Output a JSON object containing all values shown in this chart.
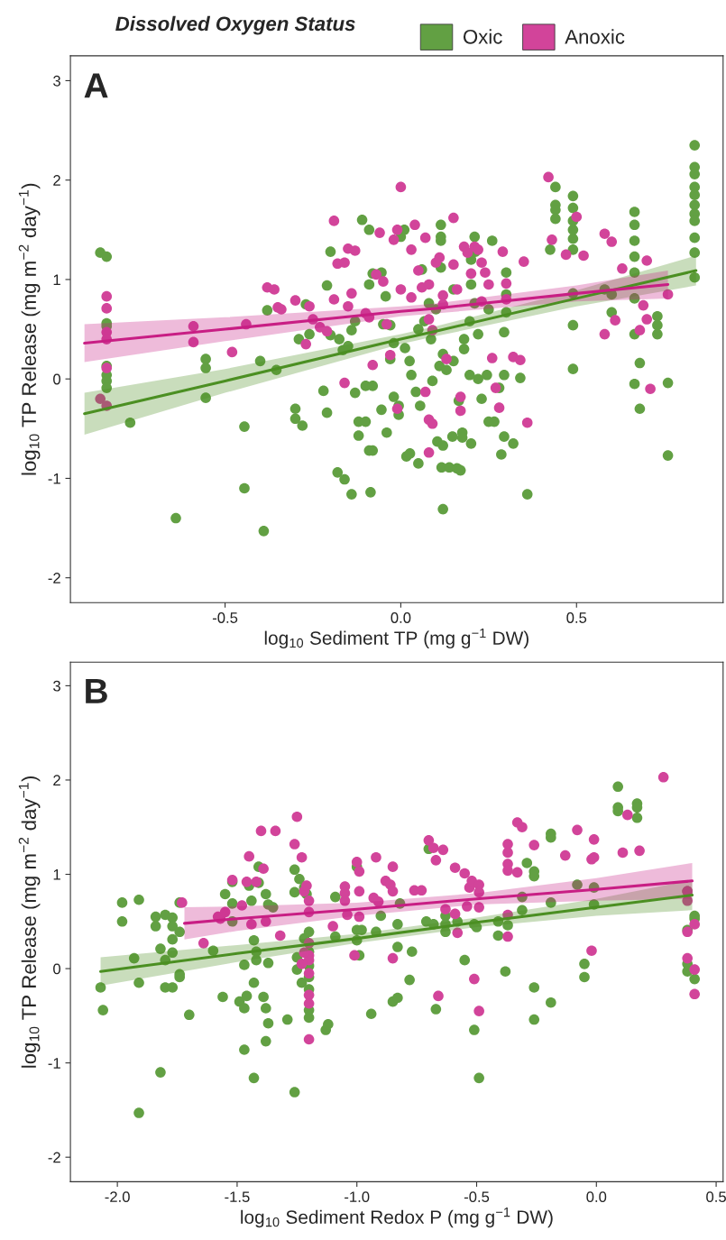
{
  "chart_data": [
    {
      "type": "scatter",
      "title": "A",
      "xlabel": "log$_{10}$ Sediment TP (mg g$^{−1}$ DW)",
      "ylabel": "log$_{10}$ TP Release (mg m$^{−2}$ day$^{−1}$)",
      "legend_title": "Dissolved Oxygen Status",
      "legend": "top",
      "grid": false,
      "xlim": [
        -0.94,
        0.917
      ],
      "ylim": [
        -2.25,
        3.25
      ],
      "xticks": [
        {
          "value": -0.5,
          "label": "-0.5"
        },
        {
          "value": 0,
          "label": "0.0"
        },
        {
          "value": 0.5,
          "label": "0.5"
        }
      ],
      "yticks": [
        -2,
        -1,
        0,
        1,
        2,
        3
      ],
      "series": [
        {
          "name": "Oxic",
          "marker": "circle",
          "color": "#62a043",
          "x": [
            -0.855,
            -0.837,
            -0.837,
            -0.837,
            -0.837,
            -0.837,
            -0.837,
            -0.837,
            -0.77,
            -0.64,
            -0.555,
            -0.555,
            -0.555,
            -0.445,
            -0.445,
            -0.39,
            -0.4,
            -0.354,
            -0.38,
            -0.3,
            -0.3,
            -0.28,
            -0.29,
            -0.27,
            -0.26,
            -0.22,
            -0.21,
            -0.21,
            -0.2,
            -0.18,
            -0.16,
            -0.14,
            -0.13,
            -0.12,
            -0.1,
            -0.12,
            -0.09,
            -0.08,
            -0.086,
            -0.11,
            -0.09,
            -0.1,
            -0.08,
            -0.175,
            -0.165,
            -0.14,
            -0.13,
            -0.09,
            -0.055,
            -0.04,
            -0.02,
            -0.006,
            -0.006,
            0.016,
            0.026,
            0.05,
            0.01,
            0.0,
            -0.055,
            -0.043,
            -0.03,
            -0.02,
            0.012,
            0.025,
            0.03,
            0.043,
            0.055,
            0.067,
            0.08,
            0.086,
            0.114,
            0.114,
            0.114,
            0.114,
            0.12,
            0.116,
            0.138,
            0.16,
            0.17,
            0.104,
            0.12,
            0.147,
            0.175,
            0.175,
            0.09,
            0.11,
            0.13,
            0.15,
            0.165,
            0.18,
            0.196,
            0.21,
            0.21,
            0.212,
            0.2,
            0.22,
            0.22,
            0.196,
            0.23,
            0.25,
            0.26,
            0.266,
            0.245,
            0.28,
            0.286,
            0.294,
            0.294,
            0.3,
            0.3,
            0.3,
            0.294,
            0.32,
            0.34,
            0.36,
            0.425,
            0.44,
            0.44,
            0.44,
            0.44,
            0.49,
            0.49,
            0.49,
            0.49,
            0.49,
            0.49,
            0.49,
            0.49,
            0.49,
            0.58,
            0.6,
            0.6,
            0.665,
            0.665,
            0.665,
            0.665,
            0.665,
            0.665,
            0.665,
            0.665,
            0.68,
            0.68,
            0.73,
            0.73,
            0.73,
            0.76,
            0.76,
            0.836,
            0.836,
            0.836,
            0.836,
            0.836,
            0.836,
            0.836,
            0.836,
            0.836,
            0.836,
            0.836,
            -0.2,
            -0.15,
            -0.05,
            0.05,
            0.1,
            0.15,
            0.2,
            0.25,
            0.06,
            -0.08,
            0.18,
            0.12,
            -0.03,
            0.2
          ],
          "values": [
            1.27,
            1.23,
            0.56,
            0.53,
            0.13,
            0.04,
            -0.02,
            -0.09,
            -0.44,
            -1.4,
            0.2,
            0.11,
            -0.19,
            -0.48,
            -1.1,
            -1.53,
            0.18,
            0.09,
            0.69,
            -0.3,
            -0.4,
            -0.47,
            0.4,
            0.75,
            0.45,
            -0.12,
            -0.34,
            0.94,
            1.28,
            -0.94,
            -1.01,
            -1.16,
            -0.14,
            -0.43,
            -0.43,
            -0.57,
            -0.72,
            -0.72,
            -1.14,
            1.6,
            1.5,
            -0.07,
            -0.07,
            0.4,
            0.29,
            0.49,
            0.58,
            0.95,
            -0.31,
            -0.54,
            -0.18,
            -0.27,
            -0.36,
            -0.78,
            -0.75,
            -0.85,
            1.5,
            1.43,
            1.07,
            0.83,
            0.54,
            0.36,
            0.31,
            0.18,
            0.04,
            -0.13,
            -0.27,
            0.58,
            0.76,
            0.4,
            1.55,
            1.43,
            1.39,
            1.12,
            -1.31,
            -0.89,
            -0.89,
            -0.9,
            -0.92,
            -0.63,
            -0.67,
            -0.58,
            -0.54,
            -0.59,
            -0.02,
            0.13,
            0.09,
            0.18,
            -0.22,
            0.4,
            0.58,
            0.76,
            1.43,
            1.28,
            -0.65,
            0.45,
            0.0,
            0.04,
            -0.2,
            -0.43,
            1.39,
            -0.43,
            0.04,
            -0.09,
            -0.76,
            -0.58,
            0.04,
            1.07,
            0.85,
            0.67,
            0.47,
            -0.65,
            0.01,
            -1.16,
            1.3,
            1.93,
            1.75,
            1.7,
            1.61,
            1.84,
            1.72,
            1.59,
            1.5,
            1.41,
            1.3,
            0.86,
            0.54,
            0.1,
            0.9,
            0.85,
            0.67,
            1.68,
            1.55,
            1.39,
            1.23,
            1.07,
            0.81,
            0.45,
            -0.05,
            0.16,
            -0.3,
            0.63,
            0.54,
            0.45,
            -0.04,
            -0.77,
            2.35,
            2.13,
            2.06,
            1.93,
            1.85,
            1.75,
            1.66,
            1.59,
            1.42,
            1.27,
            1.02,
            0.44,
            0.33,
            0.55,
            0.5,
            0.7,
            0.9,
            0.95,
            0.7,
            1.1,
            1.06,
            0.3,
            0.25,
            0.2,
            1.2
          ]
        },
        {
          "name": "Anoxic",
          "marker": "circle",
          "color": "#d2449a",
          "x": [
            -0.837,
            -0.837,
            -0.837,
            -0.837,
            -0.837,
            -0.855,
            -0.837,
            -0.59,
            -0.59,
            -0.48,
            -0.44,
            -0.38,
            -0.36,
            -0.35,
            -0.34,
            -0.3,
            -0.26,
            -0.25,
            -0.27,
            -0.23,
            -0.21,
            -0.19,
            -0.19,
            -0.18,
            -0.16,
            -0.15,
            -0.14,
            -0.13,
            -0.15,
            -0.16,
            -0.1,
            -0.08,
            -0.09,
            -0.07,
            -0.05,
            -0.06,
            -0.04,
            -0.02,
            -0.01,
            0.0,
            -0.03,
            -0.01,
            0.0,
            0.03,
            0.04,
            0.03,
            0.05,
            0.06,
            0.07,
            0.08,
            0.08,
            0.09,
            0.07,
            0.08,
            0.09,
            0.08,
            0.1,
            0.11,
            0.12,
            0.12,
            0.13,
            0.15,
            0.15,
            0.16,
            0.17,
            0.17,
            0.18,
            0.19,
            0.2,
            0.21,
            0.22,
            0.23,
            0.24,
            0.23,
            0.25,
            0.26,
            0.27,
            0.28,
            0.29,
            0.3,
            0.3,
            0.32,
            0.34,
            0.35,
            0.36,
            0.42,
            0.43,
            0.47,
            0.5,
            0.52,
            0.58,
            0.58,
            0.6,
            0.61,
            0.63,
            0.7,
            0.68,
            0.69,
            0.7,
            0.71,
            0.76
          ],
          "values": [
            0.83,
            0.71,
            0.47,
            0.4,
            0.11,
            -0.2,
            -0.27,
            0.53,
            0.37,
            0.27,
            0.55,
            0.92,
            0.9,
            0.72,
            0.7,
            0.79,
            0.73,
            0.6,
            0.35,
            0.52,
            0.48,
            1.59,
            0.8,
            1.16,
            1.17,
            1.31,
            0.86,
            1.29,
            0.73,
            -0.04,
            0.66,
            0.14,
            0.62,
            1.05,
            0.98,
            1.47,
            0.55,
            1.4,
            1.5,
            1.93,
            0.24,
            -0.3,
            0.9,
            1.3,
            1.55,
            0.82,
            1.09,
            0.92,
            1.42,
            0.95,
            0.6,
            0.49,
            -0.13,
            -0.41,
            -0.45,
            -0.74,
            1.17,
            1.22,
            0.84,
            0.75,
            0.2,
            1.62,
            1.15,
            0.9,
            -0.18,
            -0.32,
            1.33,
            1.27,
            1.06,
            1.33,
            1.3,
            1.17,
            1.07,
            0.78,
            0.95,
            0.21,
            -0.09,
            -0.29,
            1.28,
            0.96,
            0.8,
            0.22,
            0.19,
            1.18,
            -0.44,
            2.03,
            1.4,
            1.25,
            1.63,
            1.24,
            1.46,
            0.45,
            1.38,
            0.59,
            1.11,
            1.19,
            0.49,
            0.74,
            0.6,
            -0.1,
            0.85
          ]
        },
        {
          "type": "line",
          "color": "#4b8f22",
          "x": [
            -0.9,
            -0.5,
            0,
            0.1,
            0.5,
            0.84
          ],
          "values": [
            -0.35,
            -0.02,
            0.4,
            0.48,
            0.81,
            1.09
          ],
          "lower": [
            -0.56,
            -0.14,
            0.35,
            0.43,
            0.73,
            0.94
          ],
          "upper": [
            -0.14,
            0.1,
            0.45,
            0.53,
            0.89,
            1.24
          ]
        },
        {
          "type": "line",
          "color": "#c81e84",
          "x": [
            -0.9,
            -0.5,
            0,
            0.1,
            0.5,
            0.76
          ],
          "values": [
            0.36,
            0.5,
            0.68,
            0.71,
            0.86,
            0.95
          ],
          "lower": [
            0.17,
            0.38,
            0.63,
            0.66,
            0.78,
            0.81
          ],
          "upper": [
            0.55,
            0.62,
            0.73,
            0.76,
            0.94,
            1.09
          ]
        }
      ]
    },
    {
      "type": "scatter",
      "title": "B",
      "xlabel": "log$_{10}$ Sediment Redox P (mg g$^{−1}$ DW)",
      "ylabel": "log$_{10}$ TP Release (mg m$^{−2}$ day$^{−1}$)",
      "grid": false,
      "xlim": [
        -2.196,
        0.529
      ],
      "ylim": [
        -2.26,
        3.25
      ],
      "xticks": [
        {
          "value": -2,
          "label": "-2.0"
        },
        {
          "value": -1.5,
          "label": "-1.5"
        },
        {
          "value": -1,
          "label": "-1.0"
        },
        {
          "value": -0.5,
          "label": "-0.5"
        },
        {
          "value": 0,
          "label": "0.0"
        },
        {
          "value": 0.5,
          "label": "0.5"
        }
      ],
      "yticks": [
        -2,
        -1,
        0,
        1,
        2,
        3
      ],
      "series": [
        {
          "marker": "circle",
          "color": "#62a043",
          "x": [
            -2.07,
            -2.06,
            -1.98,
            -1.98,
            -1.93,
            -1.91,
            -1.91,
            -1.91,
            -1.84,
            -1.84,
            -1.82,
            -1.82,
            -1.8,
            -1.8,
            -1.8,
            -1.77,
            -1.77,
            -1.77,
            -1.77,
            -1.77,
            -1.74,
            -1.74,
            -1.74,
            -1.74,
            -1.7,
            -1.6,
            -1.56,
            -1.55,
            -1.52,
            -1.52,
            -1.52,
            -1.49,
            -1.47,
            -1.47,
            -1.47,
            -1.46,
            -1.45,
            -1.44,
            -1.43,
            -1.43,
            -1.43,
            -1.42,
            -1.42,
            -1.41,
            -1.41,
            -1.39,
            -1.38,
            -1.38,
            -1.38,
            -1.37,
            -1.37,
            -1.37,
            -1.35,
            -1.29,
            -1.26,
            -1.26,
            -1.26,
            -1.25,
            -1.25,
            -1.24,
            -1.23,
            -1.22,
            -1.22,
            -1.21,
            -1.2,
            -1.2,
            -1.2,
            -1.2,
            -1.2,
            -1.2,
            -1.2,
            -1.13,
            -1.12,
            -1.09,
            -1.09,
            -1.0,
            -1.0,
            -1.0,
            -0.99,
            -0.98,
            -0.94,
            -0.92,
            -0.9,
            -0.85,
            -0.83,
            -0.83,
            -0.83,
            -0.82,
            -0.78,
            -0.77,
            -0.71,
            -0.7,
            -0.68,
            -0.67,
            -0.63,
            -0.63,
            -0.63,
            -0.58,
            -0.55,
            -0.51,
            -0.51,
            -0.5,
            -0.49,
            -0.41,
            -0.41,
            -0.38,
            -0.37,
            -0.31,
            -0.31,
            -0.29,
            -0.26,
            -0.26,
            -0.26,
            -0.26,
            -0.19,
            -0.19,
            -0.19,
            -0.19,
            -0.08,
            -0.05,
            -0.05,
            -0.01,
            -0.01,
            0.09,
            0.09,
            0.09,
            0.17,
            0.17,
            0.17,
            0.38,
            0.38,
            0.38,
            0.41,
            0.41,
            0.41,
            0.38
          ],
          "values": [
            -0.2,
            -0.44,
            0.7,
            0.5,
            0.11,
            0.73,
            -0.15,
            -1.53,
            0.55,
            0.45,
            0.21,
            -1.1,
            0.57,
            0.09,
            -0.2,
            0.54,
            0.45,
            0.31,
            0.17,
            -0.2,
            0.7,
            0.39,
            -0.06,
            -0.09,
            -0.49,
            0.19,
            -0.3,
            0.79,
            0.69,
            0.92,
            0.5,
            -0.35,
            -0.42,
            0.04,
            -0.86,
            -0.29,
            0.88,
            0.72,
            -1.16,
            0.3,
            -0.15,
            0.09,
            0.18,
            1.08,
            0.91,
            -0.3,
            0.79,
            -0.42,
            -0.77,
            -0.58,
            0.06,
            0.68,
            0.65,
            -0.54,
            1.05,
            0.81,
            -1.31,
            -0.01,
            0.12,
            0.95,
            -0.15,
            0.86,
            0.32,
            0.79,
            0.39,
            0.18,
            0.03,
            -0.22,
            -0.52,
            -0.44,
            -0.09,
            -0.65,
            -0.59,
            0.34,
            0.76,
            1.08,
            0.41,
            0.3,
            0.14,
            0.41,
            -0.48,
            0.39,
            0.56,
            -0.35,
            0.47,
            -0.31,
            0.23,
            0.69,
            -0.12,
            0.18,
            0.5,
            1.27,
            0.47,
            -0.43,
            0.56,
            0.47,
            0.39,
            0.5,
            0.09,
            -0.65,
            0.47,
            0.44,
            -1.16,
            0.5,
            0.35,
            -0.03,
            0.46,
            0.62,
            0.76,
            1.12,
            1.03,
            0.98,
            -0.2,
            -0.54,
            1.43,
            1.39,
            -0.36,
            0.7,
            0.89,
            0.05,
            -0.09,
            0.68,
            0.86,
            1.93,
            1.71,
            1.67,
            1.75,
            1.71,
            1.6,
            0.41,
            0.05,
            -0.03,
            0.56,
            0.53,
            -0.11,
            0.82
          ]
        },
        {
          "marker": "circle",
          "color": "#d2449a",
          "x": [
            -1.73,
            -1.64,
            -1.58,
            -1.57,
            -1.55,
            -1.52,
            -1.48,
            -1.46,
            -1.45,
            -1.44,
            -1.42,
            -1.4,
            -1.39,
            -1.38,
            -1.34,
            -1.32,
            -1.26,
            -1.25,
            -1.23,
            -1.22,
            -1.21,
            -1.2,
            -1.2,
            -1.2,
            -1.2,
            -1.2,
            -1.2,
            -1.2,
            -1.2,
            -1.2,
            -1.22,
            -1.23,
            -1.1,
            -1.05,
            -1.05,
            -1.05,
            -1.04,
            -1.01,
            -1.0,
            -0.99,
            -0.99,
            -0.99,
            -0.93,
            -0.92,
            -0.91,
            -0.88,
            -0.86,
            -0.85,
            -0.85,
            -0.85,
            -0.76,
            -0.73,
            -0.7,
            -0.68,
            -0.67,
            -0.66,
            -0.64,
            -0.63,
            -0.59,
            -0.59,
            -0.58,
            -0.55,
            -0.54,
            -0.53,
            -0.52,
            -0.51,
            -0.49,
            -0.49,
            -0.49,
            -0.49,
            -0.37,
            -0.37,
            -0.37,
            -0.37,
            -0.37,
            -0.37,
            -0.33,
            -0.31,
            -0.33,
            -0.26,
            -0.13,
            -0.08,
            -0.02,
            -0.01,
            -0.01,
            -0.02,
            0.11,
            0.13,
            0.18,
            0.28,
            0.38,
            0.38,
            0.38,
            0.41,
            0.41,
            0.41,
            0.38
          ],
          "values": [
            0.7,
            0.27,
            0.55,
            0.53,
            0.6,
            0.94,
            0.67,
            0.92,
            1.19,
            0.47,
            0.92,
            1.46,
            1.06,
            0.5,
            1.46,
            0.35,
            1.32,
            1.61,
            1.18,
            0.82,
            0.88,
            0.72,
            0.6,
            0.27,
            0.14,
            0.09,
            -0.05,
            -0.28,
            -0.37,
            -0.75,
            0.17,
            0.05,
            0.45,
            0.87,
            0.8,
            0.72,
            0.57,
            0.14,
            1.13,
            1.03,
            0.82,
            0.55,
            0.75,
            1.18,
            0.71,
            0.93,
            0.89,
            1.08,
            0.82,
            0.11,
            0.83,
            0.83,
            1.36,
            1.28,
            1.15,
            -0.29,
            1.26,
            0.63,
            1.07,
            0.58,
            0.38,
            1.01,
            0.66,
            0.86,
            0.93,
            -0.11,
            0.89,
            0.81,
            0.65,
            -0.45,
            1.32,
            1.23,
            1.11,
            1.04,
            0.57,
            0.34,
            1.55,
            1.5,
            1.02,
            1.31,
            1.2,
            1.47,
            1.16,
            1.37,
            1.18,
            0.19,
            1.23,
            1.63,
            1.25,
            2.03,
            0.72,
            0.39,
            0.11,
            0.47,
            -0.01,
            -0.27,
            0.82
          ]
        },
        {
          "type": "line",
          "color": "#4b8f22",
          "x": [
            -2.07,
            -1.5,
            -1.0,
            -0.5,
            0,
            0.4
          ],
          "values": [
            -0.03,
            0.16,
            0.32,
            0.49,
            0.65,
            0.78
          ],
          "lower": [
            -0.18,
            0.07,
            0.27,
            0.44,
            0.56,
            0.62
          ],
          "upper": [
            0.12,
            0.25,
            0.37,
            0.54,
            0.74,
            0.94
          ]
        },
        {
          "type": "line",
          "color": "#c81e84",
          "x": [
            -1.72,
            -1.5,
            -1.0,
            -0.5,
            0,
            0.4
          ],
          "values": [
            0.48,
            0.53,
            0.63,
            0.74,
            0.84,
            0.93
          ],
          "lower": [
            0.31,
            0.4,
            0.56,
            0.68,
            0.72,
            0.74
          ],
          "upper": [
            0.65,
            0.66,
            0.7,
            0.8,
            0.96,
            1.12
          ]
        }
      ]
    }
  ]
}
